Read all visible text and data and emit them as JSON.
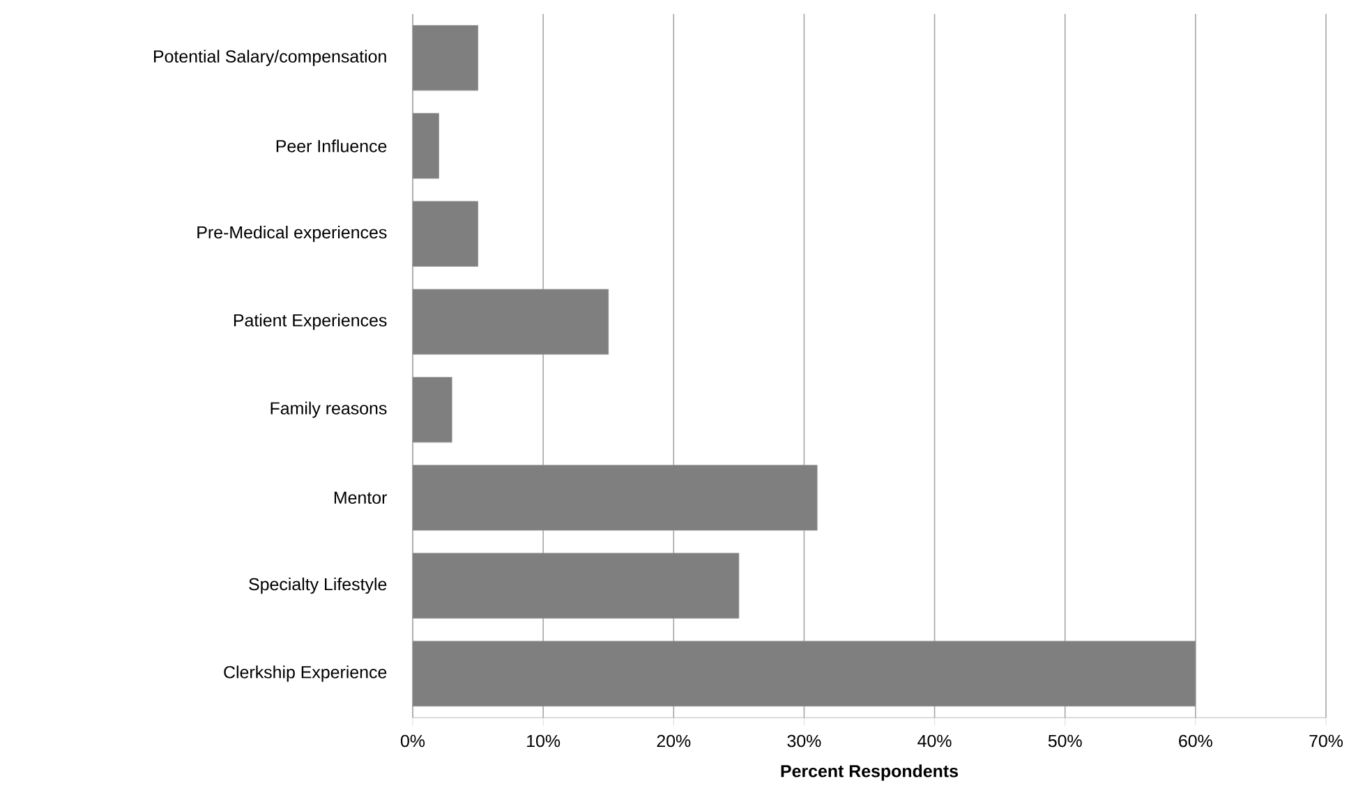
{
  "chart_data": {
    "type": "bar",
    "orientation": "horizontal",
    "xlabel": "**Percent Respondents**",
    "categories": [
      "Potential Salary/compensation",
      "Peer Influence",
      "Pre-Medical experiences",
      "Patient Experiences",
      "Family reasons",
      "Mentor",
      "Specialty Lifestyle",
      "Clerkship Experience"
    ],
    "values": [
      5,
      2,
      5,
      15,
      3,
      31,
      25,
      60
    ],
    "color": "#7f7f7f",
    "xlim": [
      0,
      70
    ],
    "xticks": [
      {
        "value": 0,
        "label": "0%"
      },
      {
        "value": 10,
        "label": "10%"
      },
      {
        "value": 20,
        "label": "20%"
      },
      {
        "value": 30,
        "label": "30%"
      },
      {
        "value": 40,
        "label": "40%"
      },
      {
        "value": 50,
        "label": "50%"
      },
      {
        "value": 60,
        "label": "60%"
      },
      {
        "value": 70,
        "label": "70%"
      }
    ],
    "grid": "x"
  }
}
